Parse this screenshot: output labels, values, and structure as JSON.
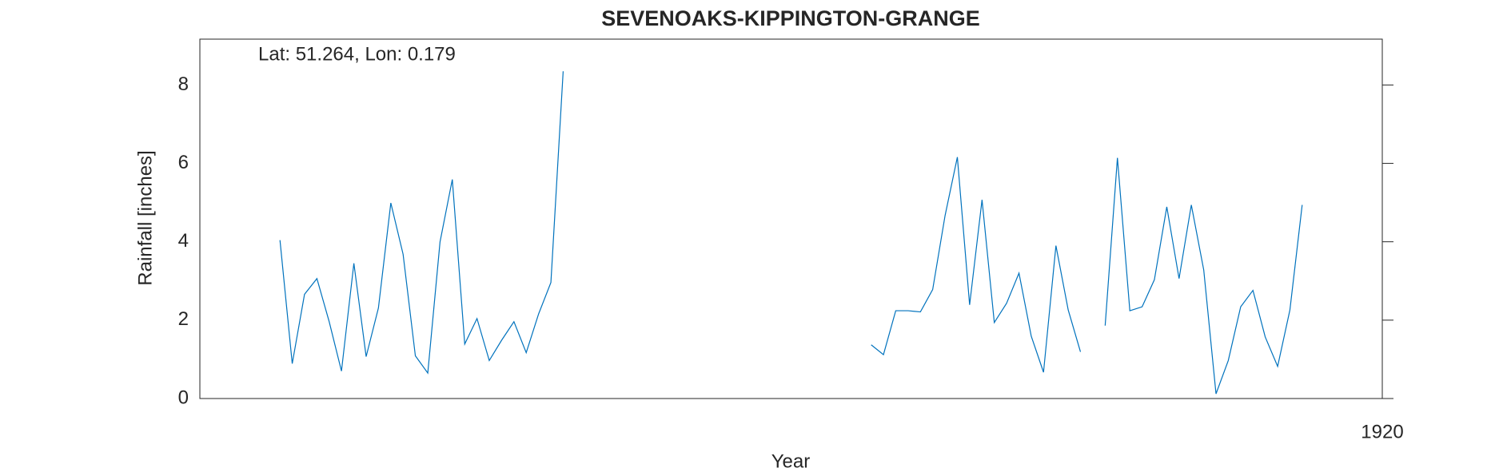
{
  "chart_data": {
    "type": "line",
    "title": "SEVENOAKS-KIPPINGTON-GRANGE",
    "annotation": "Lat: 51.264, Lon: 0.179",
    "x_label": "Year",
    "y_label": "Rainfall [inches]",
    "xlim": [
      1912,
      1920
    ],
    "xticks": [
      1920
    ],
    "ylim": [
      0,
      9.17
    ],
    "yticks": [
      0,
      2,
      4,
      6,
      8
    ],
    "x": [
      1912.542,
      1912.625,
      1912.708,
      1912.792,
      1912.875,
      1912.958,
      1913.042,
      1913.125,
      1913.208,
      1913.292,
      1913.375,
      1913.458,
      1913.542,
      1913.625,
      1913.708,
      1913.792,
      1913.875,
      1913.958,
      1914.042,
      1914.125,
      1914.208,
      1914.292,
      1914.375,
      1914.458,
      1914.542,
      1914.625,
      1914.708,
      1914.792,
      1914.875,
      1914.958,
      1915.042,
      1915.125,
      1915.208,
      1915.292,
      1915.375,
      1915.458,
      1915.542,
      1915.625,
      1915.708,
      1915.792,
      1915.875,
      1915.958,
      1916.042,
      1916.125,
      1916.208,
      1916.292,
      1916.375,
      1916.458,
      1916.542,
      1916.625,
      1916.708,
      1916.792,
      1916.875,
      1916.958,
      1917.042,
      1917.125,
      1917.208,
      1917.292,
      1917.375,
      1917.458,
      1917.542,
      1917.625,
      1917.708,
      1917.792,
      1917.875,
      1917.958,
      1918.042,
      1918.125,
      1918.208,
      1918.292,
      1918.375,
      1918.458,
      1918.542,
      1918.625,
      1918.708,
      1918.792,
      1918.875,
      1918.958,
      1919.042,
      1919.125,
      1919.208,
      1919.292,
      1919.375,
      1919.458
    ],
    "series": [
      {
        "color": "#0072bd",
        "values": [
          4.04,
          0.89,
          2.66,
          3.06,
          1.96,
          0.7,
          3.45,
          1.07,
          2.31,
          4.99,
          3.68,
          1.09,
          0.65,
          4.0,
          5.59,
          1.39,
          2.04,
          0.97,
          1.49,
          1.96,
          1.17,
          2.16,
          2.96,
          8.35,
          null,
          null,
          null,
          null,
          null,
          null,
          null,
          null,
          null,
          null,
          null,
          null,
          null,
          null,
          null,
          null,
          null,
          null,
          null,
          null,
          null,
          null,
          null,
          null,
          1.37,
          1.12,
          2.24,
          2.24,
          2.21,
          2.78,
          4.67,
          6.16,
          2.39,
          5.07,
          1.94,
          2.43,
          3.2,
          1.59,
          0.67,
          3.9,
          2.26,
          1.19,
          null,
          1.86,
          6.14,
          2.24,
          2.34,
          3.03,
          4.89,
          3.06,
          4.94,
          3.28,
          0.12,
          0.97,
          2.34,
          2.76,
          1.57,
          0.82,
          2.26,
          4.94
        ]
      }
    ]
  }
}
